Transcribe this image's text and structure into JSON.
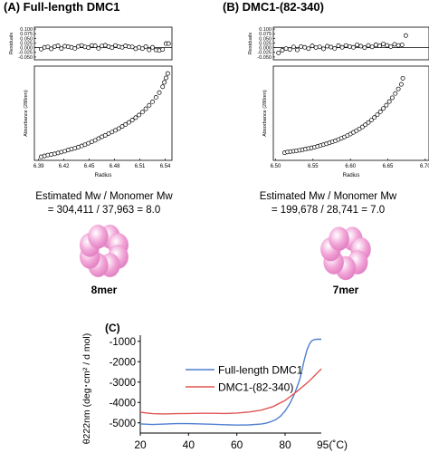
{
  "panel_a": {
    "title": "(A) Full-length DMC1",
    "mw_line1": "Estimated Mw / Monomer Mw",
    "mw_line2": "= 304,411 / 37,963 = 8.0",
    "oligomer_label": "8mer",
    "oligomer_subunits": 8
  },
  "panel_b": {
    "title": "(B) DMC1-(82-340)",
    "mw_line1": "Estimated Mw / Monomer Mw",
    "mw_line2": "= 199,678 / 28,741 = 7.0",
    "oligomer_label": "7mer",
    "oligomer_subunits": 7
  },
  "panel_c": {
    "title": "(C)"
  },
  "colors": {
    "full_length": "#4f7fcf",
    "truncated": "#e05555",
    "subunit": "#f2a6d8"
  },
  "chart_data": [
    {
      "id": "A-residuals",
      "type": "scatter",
      "ylabel": "Residuals",
      "xlim": [
        6.385,
        6.548
      ],
      "ylim": [
        -0.065,
        0.11
      ],
      "yticks": [
        "0.100",
        "0.075",
        "0.050",
        "0.025",
        "0.000",
        "-0.025",
        "-0.050"
      ],
      "ytick_values": [
        0.1,
        0.075,
        0.05,
        0.025,
        0.0,
        -0.025,
        -0.05
      ],
      "x": [
        6.393,
        6.397,
        6.401,
        6.405,
        6.409,
        6.413,
        6.417,
        6.421,
        6.425,
        6.429,
        6.433,
        6.437,
        6.441,
        6.445,
        6.449,
        6.453,
        6.457,
        6.461,
        6.465,
        6.469,
        6.473,
        6.477,
        6.481,
        6.485,
        6.489,
        6.493,
        6.497,
        6.501,
        6.505,
        6.509,
        6.513,
        6.517,
        6.521,
        6.525,
        6.529,
        6.533,
        6.537,
        6.541,
        6.544
      ],
      "y": [
        -0.008,
        0.002,
        0.004,
        -0.006,
        0.006,
        0.01,
        -0.005,
        0.008,
        0.005,
        0.002,
        -0.004,
        0.007,
        0.012,
        0.004,
        0.0,
        0.012,
        0.01,
        -0.004,
        0.009,
        0.013,
        0.006,
        0.0,
        0.012,
        0.006,
        0.002,
        0.01,
        0.005,
        0.004,
        -0.006,
        0.002,
        -0.005,
        0.006,
        -0.012,
        0.002,
        -0.012,
        -0.015,
        -0.01,
        0.022,
        0.022
      ]
    },
    {
      "id": "A-absorbance",
      "type": "scatter",
      "ylabel": "Absorbance (280nm)",
      "xlabel": "Radius",
      "xlim": [
        6.385,
        6.548
      ],
      "ylim": [
        0.0,
        0.32
      ],
      "xticks": [
        "6.39",
        "6.42",
        "6.45",
        "6.48",
        "6.51",
        "6.54"
      ],
      "xtick_values": [
        6.39,
        6.42,
        6.45,
        6.48,
        6.51,
        6.54
      ],
      "x": [
        6.393,
        6.397,
        6.401,
        6.405,
        6.409,
        6.413,
        6.417,
        6.421,
        6.425,
        6.429,
        6.433,
        6.437,
        6.441,
        6.445,
        6.449,
        6.453,
        6.457,
        6.461,
        6.465,
        6.469,
        6.473,
        6.477,
        6.481,
        6.485,
        6.489,
        6.493,
        6.497,
        6.501,
        6.505,
        6.509,
        6.513,
        6.517,
        6.521,
        6.525,
        6.529,
        6.533,
        6.537,
        6.539,
        6.541,
        6.543
      ],
      "y": [
        0.012,
        0.015,
        0.018,
        0.02,
        0.022,
        0.025,
        0.028,
        0.031,
        0.035,
        0.038,
        0.041,
        0.045,
        0.049,
        0.053,
        0.058,
        0.063,
        0.068,
        0.074,
        0.08,
        0.085,
        0.091,
        0.096,
        0.102,
        0.108,
        0.115,
        0.122,
        0.129,
        0.137,
        0.145,
        0.154,
        0.164,
        0.175,
        0.187,
        0.199,
        0.214,
        0.23,
        0.25,
        0.265,
        0.28,
        0.295
      ]
    },
    {
      "id": "B-residuals",
      "type": "scatter",
      "ylabel": "Residuals",
      "xlim": [
        6.497,
        6.705
      ],
      "ylim": [
        -0.065,
        0.11
      ],
      "yticks": [
        "0.100",
        "0.075",
        "0.050",
        "0.025",
        "0.000",
        "-0.025",
        "-0.050"
      ],
      "ytick_values": [
        0.1,
        0.075,
        0.05,
        0.025,
        0.0,
        -0.025,
        -0.05
      ],
      "x": [
        6.504,
        6.509,
        6.514,
        6.519,
        6.524,
        6.529,
        6.534,
        6.539,
        6.544,
        6.549,
        6.554,
        6.559,
        6.564,
        6.569,
        6.574,
        6.579,
        6.584,
        6.589,
        6.594,
        6.599,
        6.604,
        6.609,
        6.614,
        6.619,
        6.624,
        6.629,
        6.634,
        6.639,
        6.644,
        6.649,
        6.654,
        6.659,
        6.664,
        6.669,
        6.674
      ],
      "y": [
        -0.028,
        -0.014,
        -0.005,
        -0.01,
        0.004,
        -0.012,
        0.006,
        0.002,
        -0.005,
        0.01,
        0.001,
        0.004,
        -0.006,
        0.008,
        0.003,
        -0.004,
        0.011,
        0.002,
        0.012,
        0.006,
        0.002,
        0.015,
        0.008,
        0.0,
        0.012,
        0.004,
        0.016,
        0.01,
        0.02,
        0.012,
        0.006,
        0.018,
        0.012,
        0.015,
        0.065
      ]
    },
    {
      "id": "B-absorbance",
      "type": "scatter",
      "ylabel": "Absorbance (280nm)",
      "xlabel": "Radius",
      "xlim": [
        6.497,
        6.705
      ],
      "ylim": [
        0.0,
        0.62
      ],
      "xticks": [
        "6.50",
        "6.55",
        "6.60",
        "6.65",
        "6.70"
      ],
      "xtick_values": [
        6.5,
        6.55,
        6.6,
        6.65,
        6.7
      ],
      "x": [
        6.512,
        6.516,
        6.52,
        6.524,
        6.528,
        6.532,
        6.536,
        6.54,
        6.544,
        6.548,
        6.552,
        6.556,
        6.56,
        6.564,
        6.568,
        6.572,
        6.576,
        6.58,
        6.584,
        6.588,
        6.592,
        6.596,
        6.6,
        6.604,
        6.608,
        6.612,
        6.616,
        6.62,
        6.624,
        6.628,
        6.632,
        6.636,
        6.64,
        6.644,
        6.648,
        6.652,
        6.656,
        6.66,
        6.664,
        6.668,
        6.67
      ],
      "y": [
        0.05,
        0.055,
        0.058,
        0.06,
        0.063,
        0.066,
        0.07,
        0.074,
        0.078,
        0.082,
        0.087,
        0.092,
        0.097,
        0.103,
        0.109,
        0.115,
        0.122,
        0.129,
        0.137,
        0.145,
        0.154,
        0.163,
        0.173,
        0.184,
        0.195,
        0.207,
        0.22,
        0.234,
        0.249,
        0.265,
        0.282,
        0.3,
        0.32,
        0.341,
        0.363,
        0.387,
        0.412,
        0.44,
        0.47,
        0.5,
        0.54
      ]
    },
    {
      "id": "C-cd-melting",
      "type": "line",
      "ylabel": "θ222nm (deg･cm² / d mol)",
      "xlabel": "95(˚C)",
      "xlim": [
        20,
        95
      ],
      "ylim": [
        -5500,
        -700
      ],
      "xticks": [
        "20",
        "40",
        "60",
        "80"
      ],
      "xtick_values": [
        20,
        40,
        60,
        80
      ],
      "yticks": [
        "-1000",
        "-2000",
        "-3000",
        "-4000",
        "-5000"
      ],
      "ytick_values": [
        -1000,
        -2000,
        -3000,
        -4000,
        -5000
      ],
      "legend": "inside-right",
      "series": [
        {
          "name": "Full-length DMC1",
          "x": [
            20,
            25,
            30,
            35,
            40,
            45,
            50,
            55,
            60,
            65,
            70,
            72,
            74,
            76,
            78,
            80,
            82,
            84,
            86,
            87,
            88,
            89,
            90,
            91,
            92,
            93,
            94,
            95
          ],
          "y": [
            -5050,
            -5080,
            -5060,
            -5040,
            -5040,
            -5050,
            -5070,
            -5090,
            -5110,
            -5100,
            -5060,
            -5020,
            -4950,
            -4850,
            -4680,
            -4420,
            -4050,
            -3550,
            -2900,
            -2400,
            -1900,
            -1450,
            -1150,
            -980,
            -920,
            -900,
            -900,
            -900
          ]
        },
        {
          "name": "DMC1-(82-340)",
          "x": [
            20,
            25,
            30,
            35,
            40,
            45,
            50,
            55,
            60,
            65,
            70,
            75,
            80,
            85,
            90,
            95
          ],
          "y": [
            -4480,
            -4550,
            -4560,
            -4550,
            -4540,
            -4530,
            -4530,
            -4540,
            -4520,
            -4470,
            -4380,
            -4200,
            -3900,
            -3450,
            -2950,
            -2350
          ]
        }
      ]
    }
  ]
}
